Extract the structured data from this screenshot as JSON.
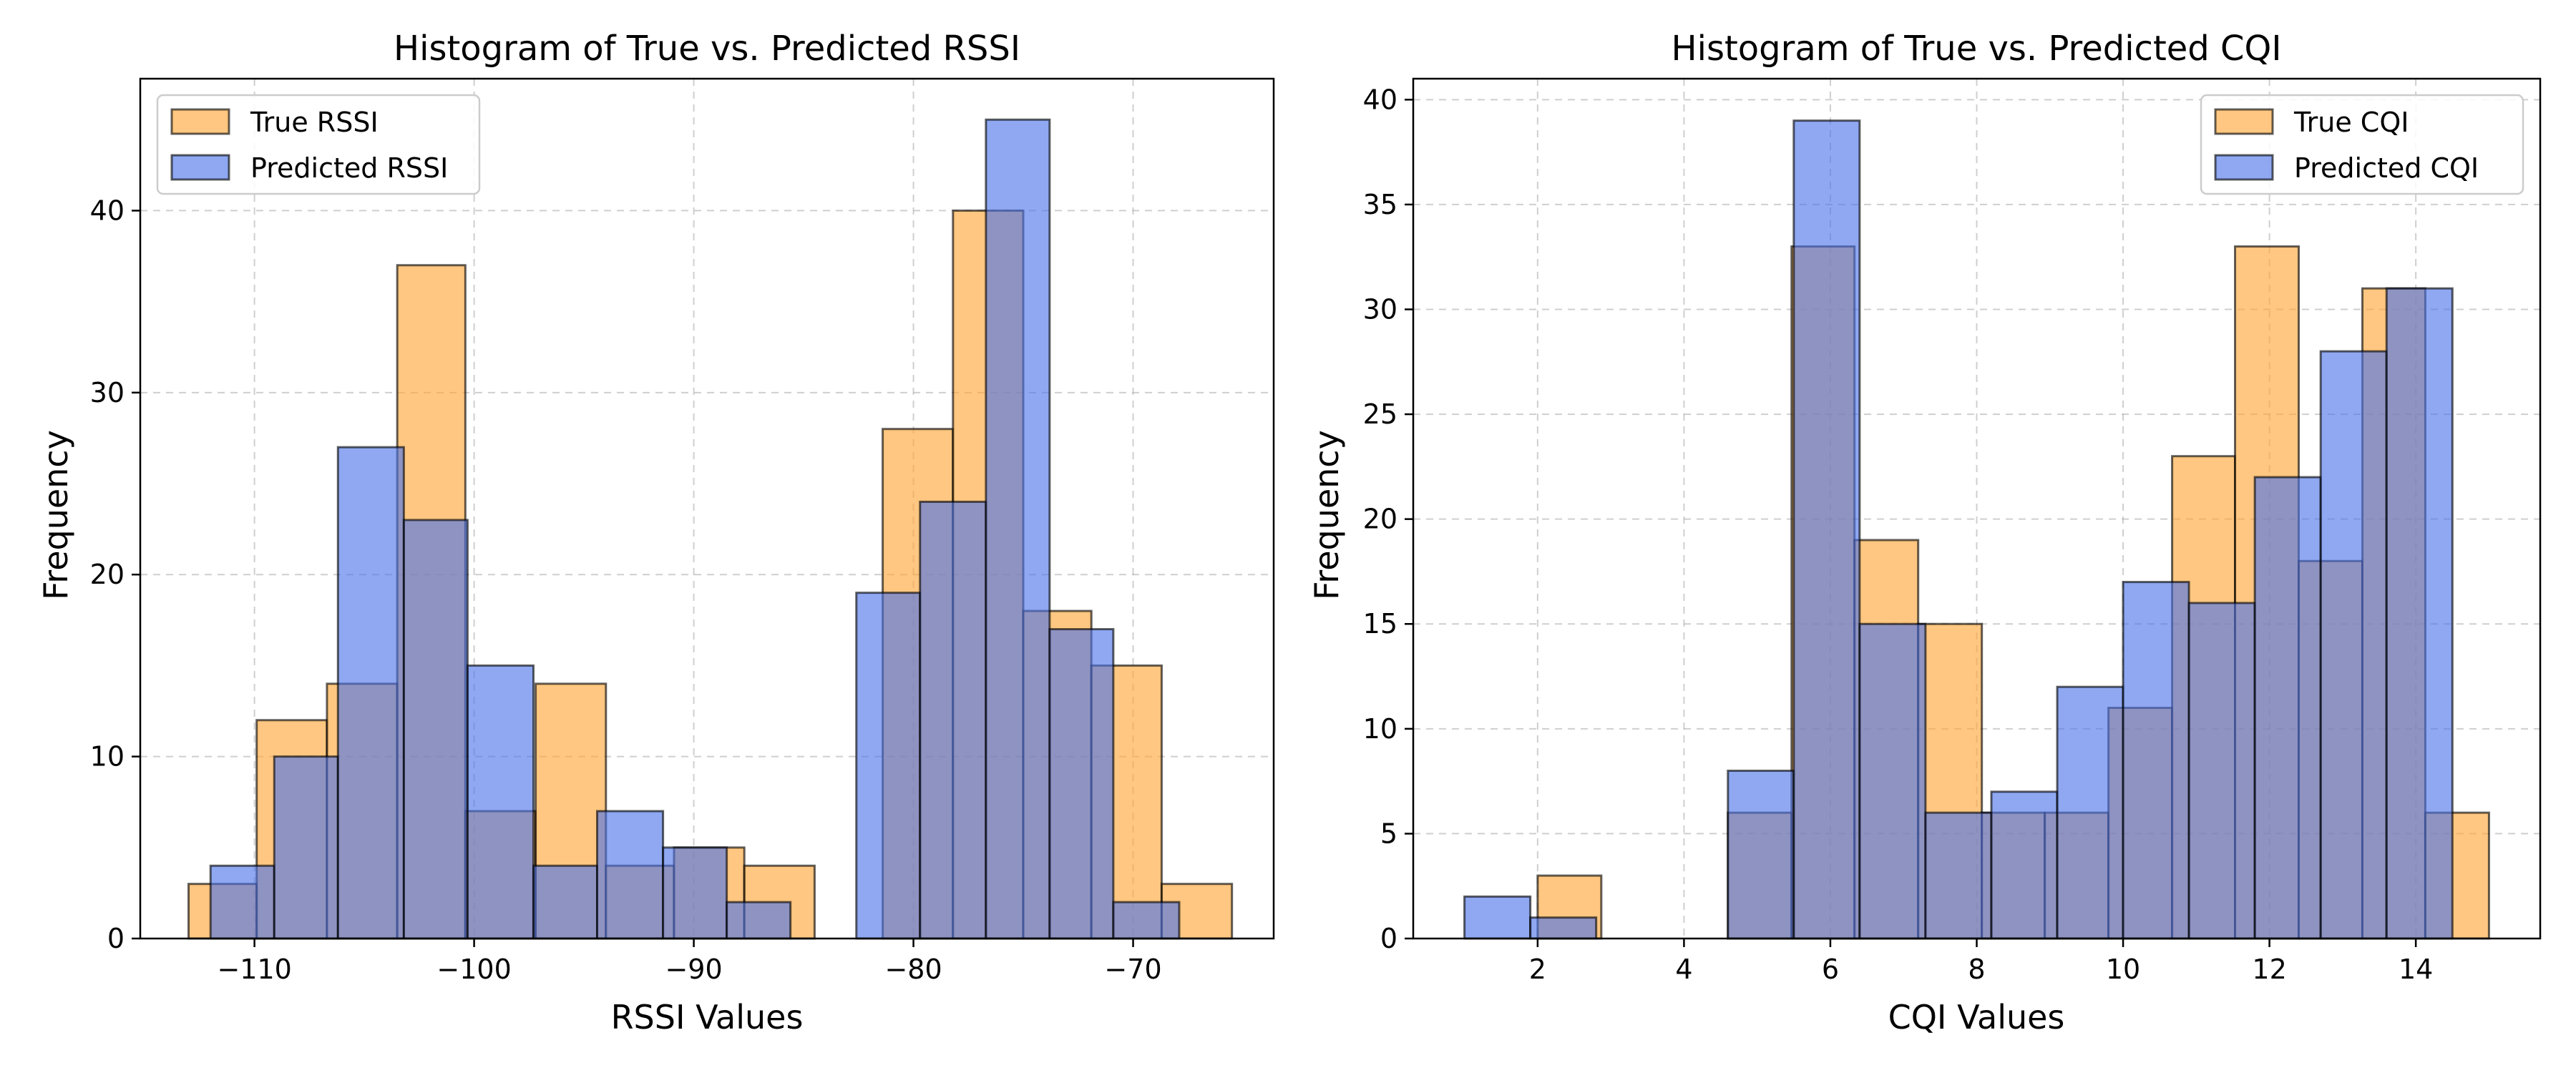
{
  "chart_data": [
    {
      "type": "bar",
      "title": "Histogram of True vs. Predicted RSSI",
      "xlabel": "RSSI Values",
      "ylabel": "Frequency",
      "xlim": [
        -115.2,
        -63.6
      ],
      "ylim": [
        0,
        47.25
      ],
      "xticks": [
        -110,
        -100,
        -90,
        -80,
        -70
      ],
      "xtick_labels": [
        "−110",
        "−100",
        "−90",
        "−80",
        "−70"
      ],
      "yticks": [
        0,
        10,
        20,
        30,
        40
      ],
      "grid": true,
      "legend_position": "upper left",
      "series": [
        {
          "name": "True RSSI",
          "color": "#ffa533",
          "bins": [
            {
              "x0": -113.0,
              "x1": -109.9,
              "count": 3
            },
            {
              "x0": -109.9,
              "x1": -106.7,
              "count": 12
            },
            {
              "x0": -106.7,
              "x1": -103.5,
              "count": 14
            },
            {
              "x0": -103.5,
              "x1": -100.4,
              "count": 37
            },
            {
              "x0": -100.4,
              "x1": -97.2,
              "count": 7
            },
            {
              "x0": -97.2,
              "x1": -94.0,
              "count": 14
            },
            {
              "x0": -94.0,
              "x1": -90.9,
              "count": 4
            },
            {
              "x0": -90.9,
              "x1": -87.7,
              "count": 5
            },
            {
              "x0": -87.7,
              "x1": -84.5,
              "count": 4
            },
            {
              "x0": -84.5,
              "x1": -81.4,
              "count": 0
            },
            {
              "x0": -81.4,
              "x1": -78.2,
              "count": 28
            },
            {
              "x0": -78.2,
              "x1": -75.0,
              "count": 40
            },
            {
              "x0": -75.0,
              "x1": -71.9,
              "count": 18
            },
            {
              "x0": -71.9,
              "x1": -68.7,
              "count": 15
            },
            {
              "x0": -68.7,
              "x1": -65.5,
              "count": 3
            }
          ]
        },
        {
          "name": "Predicted RSSI",
          "color": "#4a73e8",
          "bins": [
            {
              "x0": -112.0,
              "x1": -109.1,
              "count": 4
            },
            {
              "x0": -109.1,
              "x1": -106.2,
              "count": 10
            },
            {
              "x0": -106.2,
              "x1": -103.2,
              "count": 27
            },
            {
              "x0": -103.2,
              "x1": -100.3,
              "count": 23
            },
            {
              "x0": -100.3,
              "x1": -97.3,
              "count": 15
            },
            {
              "x0": -97.3,
              "x1": -94.4,
              "count": 4
            },
            {
              "x0": -94.4,
              "x1": -91.4,
              "count": 7
            },
            {
              "x0": -91.4,
              "x1": -88.5,
              "count": 5
            },
            {
              "x0": -88.5,
              "x1": -85.6,
              "count": 2
            },
            {
              "x0": -85.6,
              "x1": -82.6,
              "count": 0
            },
            {
              "x0": -82.6,
              "x1": -79.7,
              "count": 19
            },
            {
              "x0": -79.7,
              "x1": -76.7,
              "count": 24
            },
            {
              "x0": -76.7,
              "x1": -73.8,
              "count": 45
            },
            {
              "x0": -73.8,
              "x1": -70.9,
              "count": 17
            },
            {
              "x0": -70.9,
              "x1": -67.9,
              "count": 2
            }
          ]
        }
      ]
    },
    {
      "type": "bar",
      "title": "Histogram of True vs. Predicted CQI",
      "xlabel": "CQI Values",
      "ylabel": "Frequency",
      "xlim": [
        0.3,
        15.7
      ],
      "ylim": [
        0,
        41.0
      ],
      "xticks": [
        2,
        4,
        6,
        8,
        10,
        12,
        14
      ],
      "xtick_labels": [
        "2",
        "4",
        "6",
        "8",
        "10",
        "12",
        "14"
      ],
      "yticks": [
        0,
        5,
        10,
        15,
        20,
        25,
        30,
        35,
        40
      ],
      "grid": true,
      "legend_position": "upper right",
      "series": [
        {
          "name": "True CQI",
          "color": "#ffa533",
          "bins": [
            {
              "x0": 2.0,
              "x1": 2.87,
              "count": 3
            },
            {
              "x0": 2.87,
              "x1": 3.73,
              "count": 0
            },
            {
              "x0": 3.73,
              "x1": 4.6,
              "count": 0
            },
            {
              "x0": 4.6,
              "x1": 5.47,
              "count": 6
            },
            {
              "x0": 5.47,
              "x1": 6.33,
              "count": 33
            },
            {
              "x0": 6.33,
              "x1": 7.2,
              "count": 19
            },
            {
              "x0": 7.2,
              "x1": 8.07,
              "count": 15
            },
            {
              "x0": 8.07,
              "x1": 8.93,
              "count": 6
            },
            {
              "x0": 8.93,
              "x1": 9.8,
              "count": 6
            },
            {
              "x0": 9.8,
              "x1": 10.67,
              "count": 11
            },
            {
              "x0": 10.67,
              "x1": 11.53,
              "count": 23
            },
            {
              "x0": 11.53,
              "x1": 12.4,
              "count": 33
            },
            {
              "x0": 12.4,
              "x1": 13.27,
              "count": 18
            },
            {
              "x0": 13.27,
              "x1": 14.13,
              "count": 31
            },
            {
              "x0": 14.13,
              "x1": 15.0,
              "count": 6
            }
          ]
        },
        {
          "name": "Predicted CQI",
          "color": "#4a73e8",
          "bins": [
            {
              "x0": 1.0,
              "x1": 1.9,
              "count": 2
            },
            {
              "x0": 1.9,
              "x1": 2.8,
              "count": 1
            },
            {
              "x0": 2.8,
              "x1": 3.7,
              "count": 0
            },
            {
              "x0": 3.7,
              "x1": 4.6,
              "count": 0
            },
            {
              "x0": 4.6,
              "x1": 5.5,
              "count": 8
            },
            {
              "x0": 5.5,
              "x1": 6.4,
              "count": 39
            },
            {
              "x0": 6.4,
              "x1": 7.3,
              "count": 15
            },
            {
              "x0": 7.3,
              "x1": 8.2,
              "count": 6
            },
            {
              "x0": 8.2,
              "x1": 9.1,
              "count": 7
            },
            {
              "x0": 9.1,
              "x1": 10.0,
              "count": 12
            },
            {
              "x0": 10.0,
              "x1": 10.9,
              "count": 17
            },
            {
              "x0": 10.9,
              "x1": 11.8,
              "count": 16
            },
            {
              "x0": 11.8,
              "x1": 12.7,
              "count": 22
            },
            {
              "x0": 12.7,
              "x1": 13.6,
              "count": 28
            },
            {
              "x0": 13.6,
              "x1": 14.5,
              "count": 31
            }
          ]
        }
      ]
    }
  ]
}
